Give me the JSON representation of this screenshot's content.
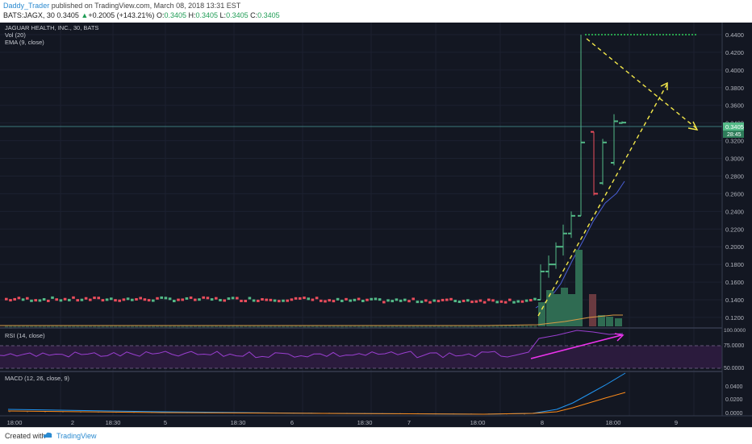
{
  "header": {
    "author": "Daddy_Trader",
    "published": "published on TradingView.com, March 08, 2018 13:31 EST",
    "symbol": "BATS:JAGX, 30",
    "last": "0.3405",
    "change_arrow": "▲",
    "change": "+0.2005 (+143.21%)",
    "o_label": "O:",
    "o": "0.3405",
    "h_label": "H:",
    "h": "0.3405",
    "l_label": "L:",
    "l": "0.3405",
    "c_label": "C:",
    "c": "0.3405"
  },
  "legend": {
    "title": "JAGUAR HEALTH, INC., 30, BATS",
    "vol": "Vol (20)",
    "ema": "EMA (9, close)",
    "rsi": "RSI (14, close)",
    "macd": "MACD (12, 26, close, 9)"
  },
  "price_axis": {
    "ticks": [
      "0.4400",
      "0.4200",
      "0.4000",
      "0.3800",
      "0.3600",
      "0.3400",
      "0.3200",
      "0.3000",
      "0.2800",
      "0.2600",
      "0.2400",
      "0.2200",
      "0.2000",
      "0.1800",
      "0.1600",
      "0.1400",
      "0.1200"
    ],
    "current_label": "0.3405",
    "countdown": "28:45"
  },
  "rsi_axis": {
    "ticks": [
      "75.0000",
      "50.0000"
    ],
    "top_label": "100.0000"
  },
  "macd_axis": {
    "ticks": [
      "0.0400",
      "0.0200",
      "0.0000"
    ]
  },
  "time_axis": {
    "labels": [
      "18:00",
      "2",
      "18:30",
      "5",
      "18:30",
      "6",
      "18:30",
      "7",
      "18:00",
      "8",
      "18:00",
      "9"
    ]
  },
  "footer": {
    "created": "Created with",
    "brand": "TradingView"
  },
  "colors": {
    "background": "#131722",
    "up": "#53b987",
    "down": "#eb4d5c",
    "ema": "#4a5fd6",
    "rsi_line": "#9a3fd0",
    "rsi_band": "#2b1b3d",
    "macd": "#2196f3",
    "signal": "#ff8c1a",
    "annotation_yellow": "#f5e94a",
    "annotation_green": "#2fd05a",
    "annotation_magenta": "#ee33ee",
    "price_line": "#4a9a9a"
  },
  "chart_data": {
    "type": "candlestick",
    "title": "JAGUAR HEALTH, INC., 30, BATS",
    "ylim": [
      0.12,
      0.45
    ],
    "baseline_price": 0.14,
    "spike": [
      {
        "open": 0.14,
        "high": 0.18,
        "low": 0.14,
        "close": 0.172,
        "dir": "up"
      },
      {
        "open": 0.172,
        "high": 0.19,
        "low": 0.165,
        "close": 0.18,
        "dir": "up"
      },
      {
        "open": 0.18,
        "high": 0.205,
        "low": 0.175,
        "close": 0.2,
        "dir": "up"
      },
      {
        "open": 0.2,
        "high": 0.225,
        "low": 0.19,
        "close": 0.215,
        "dir": "up"
      },
      {
        "open": 0.215,
        "high": 0.24,
        "low": 0.21,
        "close": 0.235,
        "dir": "up"
      },
      {
        "open": 0.235,
        "high": 0.44,
        "low": 0.235,
        "close": 0.318,
        "dir": "up"
      },
      {
        "open": 0.33,
        "high": 0.33,
        "low": 0.258,
        "close": 0.26,
        "dir": "down"
      },
      {
        "open": 0.272,
        "high": 0.322,
        "low": 0.27,
        "close": 0.318,
        "dir": "up"
      },
      {
        "open": 0.295,
        "high": 0.35,
        "low": 0.292,
        "close": 0.342,
        "dir": "up"
      },
      {
        "open": 0.34,
        "high": 0.342,
        "low": 0.339,
        "close": 0.3405,
        "dir": "up"
      }
    ],
    "current_price": 0.3405,
    "peak_price": 0.44,
    "rsi_levels": [
      75,
      50
    ]
  }
}
